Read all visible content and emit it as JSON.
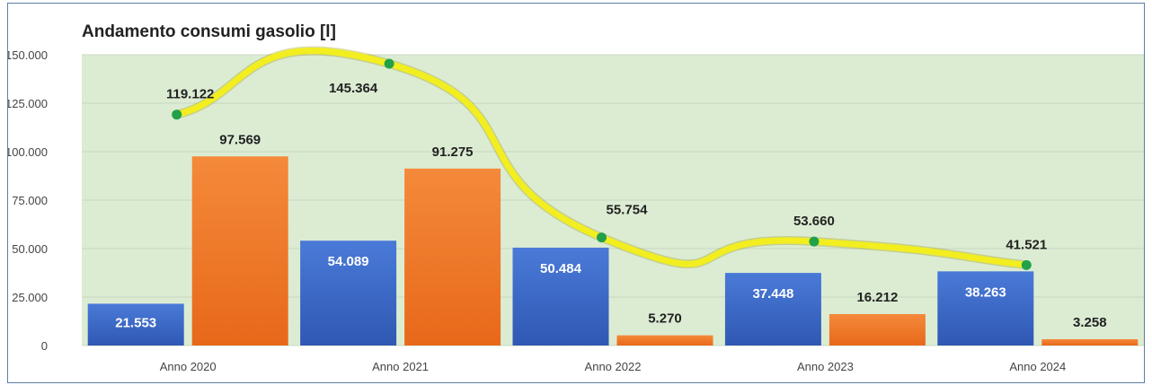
{
  "chart_data": {
    "type": "bar",
    "title": "Andamento consumi gasolio [l]",
    "categories": [
      "Anno 2020",
      "Anno 2021",
      "Anno 2022",
      "Anno 2023",
      "Anno 2024"
    ],
    "series": [
      {
        "values": [
          21553,
          54089,
          50484,
          37448,
          38263
        ],
        "labels": [
          "21.553",
          "54.089",
          "50.484",
          "37.448",
          "38.263"
        ],
        "color": "#3b68c9"
      },
      {
        "values": [
          97569,
          91275,
          5270,
          16212,
          3258
        ],
        "labels": [
          "97.569",
          "91.275",
          "5.270",
          "16.212",
          "3.258"
        ],
        "color": "#f07b24"
      }
    ],
    "line_series": {
      "type": "line",
      "values": [
        119122,
        145364,
        55754,
        53660,
        41521
      ],
      "labels": [
        "119.122",
        "145.364",
        "55.754",
        "53.660",
        "41.521"
      ],
      "line_color": "#f2ee1f",
      "marker_color": "#22a14a"
    },
    "ylim": [
      0,
      150000
    ],
    "yticks": [
      "0",
      "25.000",
      "50.000",
      "75.000",
      "100.000",
      "125.000",
      "150.000"
    ],
    "plot_background": "#dcecd3",
    "legend": "none"
  }
}
